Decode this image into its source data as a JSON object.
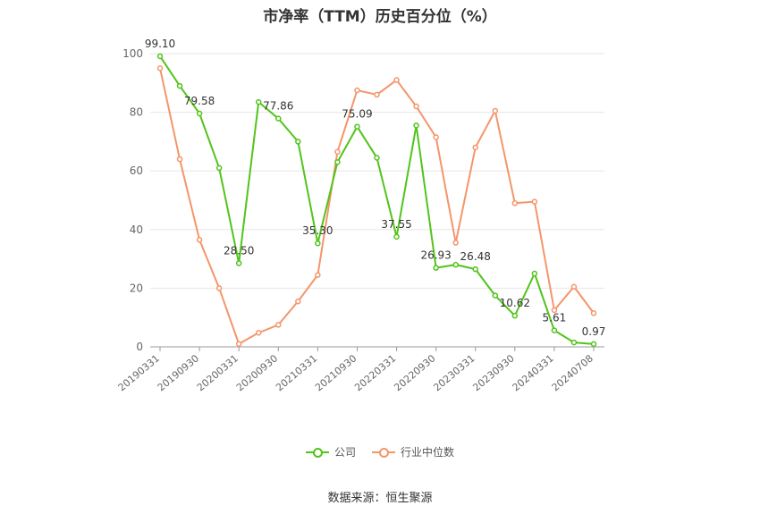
{
  "chart_data": {
    "type": "line",
    "title": "市净率（TTM）历史百分位（%）",
    "source": "数据来源：恒生聚源",
    "ylim": [
      0,
      100
    ],
    "yticks": [
      0,
      20,
      40,
      60,
      80,
      100
    ],
    "x": [
      "20190331",
      "20190630",
      "20190930",
      "20191231",
      "20200331",
      "20200630",
      "20200930",
      "20201231",
      "20210331",
      "20210630",
      "20210930",
      "20211231",
      "20220331",
      "20220630",
      "20220930",
      "20221231",
      "20230331",
      "20230630",
      "20230930",
      "20231231",
      "20240331",
      "20240630",
      "20240708"
    ],
    "x_tick_labels": [
      "20190331",
      "20190930",
      "20200331",
      "20200930",
      "20210331",
      "20210930",
      "20220331",
      "20220930",
      "20230331",
      "20230930",
      "20240331",
      "20240708"
    ],
    "grid": true,
    "legend_position": "bottom",
    "series": [
      {
        "name": "公司",
        "color": "#52c41a",
        "values": [
          99.1,
          89,
          79.58,
          61,
          28.5,
          83.5,
          77.86,
          70,
          35.3,
          63,
          75.09,
          64.5,
          37.55,
          75.5,
          26.93,
          28,
          26.48,
          17.5,
          10.62,
          25,
          5.61,
          1.5,
          0.97
        ],
        "labels": [
          "99.10",
          "",
          "79.58",
          "",
          "28.50",
          "",
          "77.86",
          "",
          "35.30",
          "",
          "75.09",
          "",
          "37.55",
          "",
          "26.93",
          "",
          "26.48",
          "",
          "10.62",
          "",
          "5.61",
          "",
          "0.97"
        ]
      },
      {
        "name": "行业中位数",
        "color": "#f4956b",
        "values": [
          95,
          64,
          36.5,
          20,
          1,
          4.8,
          7.5,
          15.5,
          24.5,
          66.5,
          87.5,
          86,
          91,
          82,
          71.5,
          35.5,
          68,
          80.5,
          49,
          49.5,
          12.5,
          20.5,
          11.5
        ],
        "labels": []
      }
    ]
  }
}
